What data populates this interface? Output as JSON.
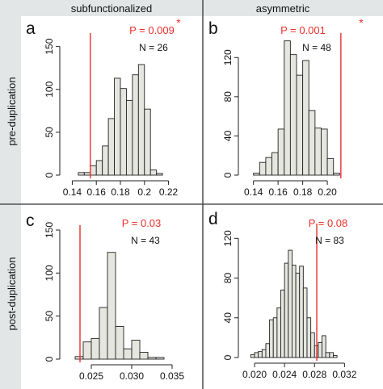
{
  "column_headers": [
    "subfunctionalized",
    "asymmetric"
  ],
  "row_headers": [
    "pre-duplication",
    "post-duplication"
  ],
  "colors": {
    "sidebar": "#e2e6e6",
    "bar_fill": "#e6e6e0",
    "bar_stroke": "#222222",
    "observed_line": "#e8302a",
    "p_text": "#e8302a",
    "text": "#111111"
  },
  "chart_data": [
    {
      "panel": "a",
      "type": "bar",
      "subtype": "histogram",
      "p_label": "P = 0.009",
      "significance_marker": "*",
      "n_label": "N = 26",
      "observed_value": 0.155,
      "bin_width": 0.005,
      "bin_starts": [
        0.145,
        0.15,
        0.155,
        0.16,
        0.165,
        0.17,
        0.175,
        0.18,
        0.185,
        0.19,
        0.195,
        0.2,
        0.205,
        0.21
      ],
      "counts": [
        3,
        3,
        11,
        17,
        34,
        66,
        113,
        101,
        87,
        117,
        129,
        77,
        6,
        2
      ],
      "xlim": [
        0.135,
        0.225
      ],
      "ylim": [
        0,
        160
      ],
      "x_ticks": [
        0.14,
        0.16,
        0.18,
        0.2,
        0.22
      ],
      "x_tick_labels": [
        "0.14",
        "0.16",
        "0.18",
        "0.2",
        "0.22"
      ],
      "y_ticks": [
        0,
        50,
        100,
        150
      ],
      "y_tick_labels": [
        "0",
        "50",
        "100",
        "150"
      ]
    },
    {
      "panel": "b",
      "type": "bar",
      "subtype": "histogram",
      "p_label": "P = 0.001",
      "significance_marker": "*",
      "n_label": "N = 48",
      "observed_value": 0.211,
      "bin_width": 0.005,
      "bin_starts": [
        0.14,
        0.145,
        0.15,
        0.155,
        0.16,
        0.165,
        0.17,
        0.175,
        0.18,
        0.185,
        0.19,
        0.195,
        0.2,
        0.205
      ],
      "counts": [
        2,
        13,
        18,
        23,
        47,
        137,
        123,
        102,
        117,
        66,
        48,
        47,
        17,
        2
      ],
      "xlim": [
        0.133,
        0.217
      ],
      "ylim": [
        0,
        140
      ],
      "x_ticks": [
        0.14,
        0.16,
        0.18,
        0.2
      ],
      "x_tick_labels": [
        "0.14",
        "0.16",
        "0.18",
        "0.20"
      ],
      "y_ticks": [
        0,
        40,
        80,
        120
      ],
      "y_tick_labels": [
        "0",
        "40",
        "80",
        "120"
      ]
    },
    {
      "panel": "c",
      "type": "bar",
      "subtype": "histogram",
      "p_label": "P = 0.03",
      "significance_marker": "",
      "n_label": "N = 43",
      "observed_value": 0.0236,
      "bin_width": 0.001,
      "bin_starts": [
        0.023,
        0.024,
        0.025,
        0.026,
        0.027,
        0.028,
        0.029,
        0.03,
        0.031,
        0.032,
        0.033
      ],
      "counts": [
        3,
        20,
        24,
        60,
        124,
        38,
        12,
        22,
        8,
        2,
        2
      ],
      "xlim": [
        0.0219,
        0.0353
      ],
      "ylim": [
        0,
        150
      ],
      "x_ticks": [
        0.025,
        0.03,
        0.035
      ],
      "x_tick_labels": [
        "0.025",
        "0.030",
        "0.035"
      ],
      "y_ticks": [
        0,
        50,
        100,
        150
      ],
      "y_tick_labels": [
        "0",
        "50",
        "100",
        "150"
      ]
    },
    {
      "panel": "d",
      "type": "bar",
      "subtype": "histogram",
      "p_label": "P = 0.08",
      "significance_marker": "",
      "n_label": "N = 83",
      "observed_value": 0.0283,
      "bin_width": 0.0005,
      "bin_starts": [
        0.0195,
        0.02,
        0.0205,
        0.021,
        0.0215,
        0.022,
        0.0225,
        0.023,
        0.0235,
        0.024,
        0.0245,
        0.025,
        0.0255,
        0.026,
        0.0265,
        0.027,
        0.0275,
        0.028,
        0.0285,
        0.029,
        0.0295,
        0.03,
        0.0305
      ],
      "counts": [
        3,
        5,
        6,
        8,
        14,
        38,
        40,
        50,
        68,
        95,
        108,
        93,
        85,
        92,
        70,
        40,
        25,
        12,
        15,
        22,
        5,
        5,
        2
      ],
      "xlim": [
        0.0187,
        0.0325
      ],
      "ylim": [
        0,
        130
      ],
      "x_ticks": [
        0.02,
        0.024,
        0.028,
        0.032
      ],
      "x_tick_labels": [
        "0.020",
        "0.024",
        "0.028",
        "0.032"
      ],
      "y_ticks": [
        0,
        40,
        80,
        120
      ],
      "y_tick_labels": [
        "0",
        "40",
        "80",
        "120"
      ]
    }
  ]
}
